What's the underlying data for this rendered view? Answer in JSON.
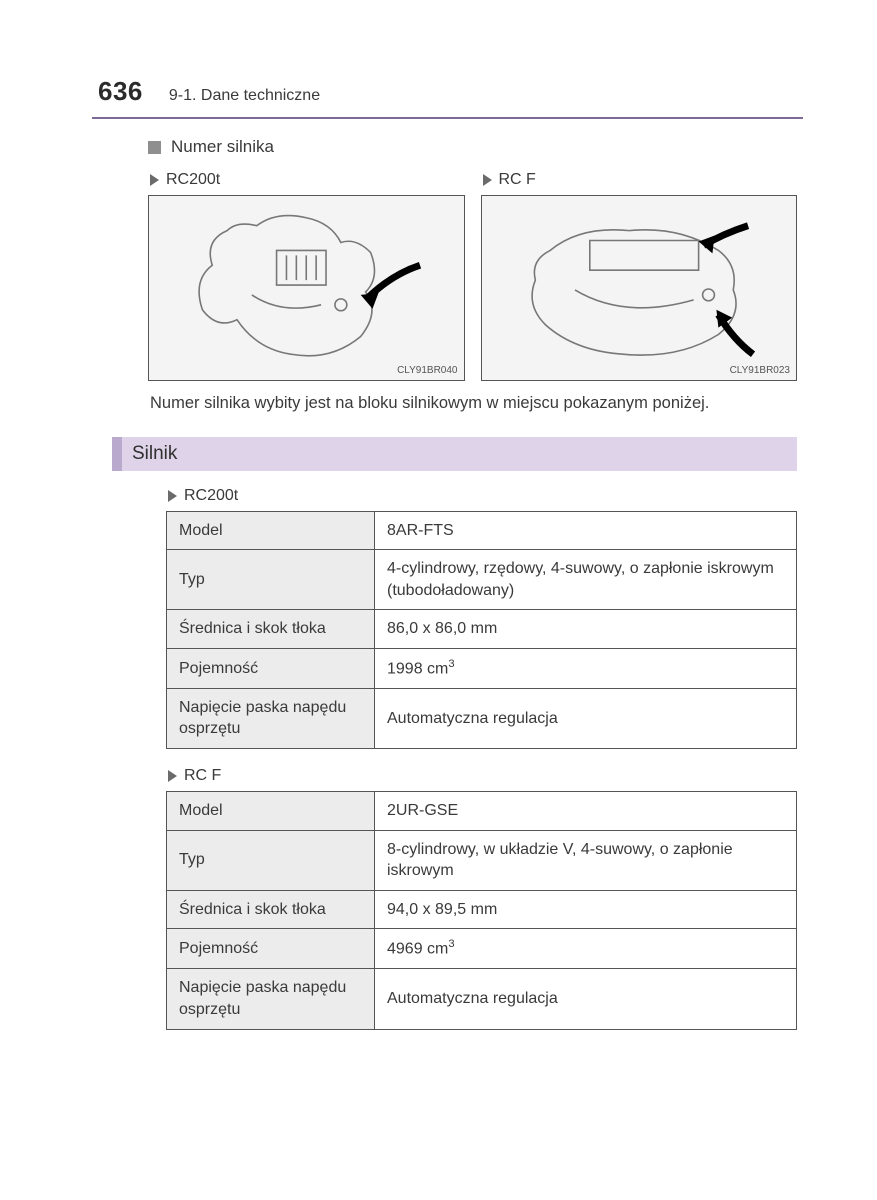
{
  "page_number": "636",
  "chapter": "9-1. Dane techniczne",
  "colors": {
    "divider": "#7d6a95",
    "section_accent": "#b9a9cc",
    "section_bg": "#ded3e8",
    "table_header_bg": "#ececec",
    "border": "#555555",
    "text": "#3a3a3a",
    "bullet": "#8f8f8f",
    "figure_bg": "#f4f4f4"
  },
  "engine_number": {
    "heading": "Numer silnika",
    "variants": [
      {
        "label": "RC200t",
        "img_code": "CLY91BR040"
      },
      {
        "label": "RC F",
        "img_code": "CLY91BR023"
      }
    ],
    "caption": "Numer silnika wybity jest na bloku silnikowym w miejscu pokazanym poniżej."
  },
  "engine_section": {
    "title": "Silnik",
    "tables": [
      {
        "label": "RC200t",
        "rows": [
          {
            "k": "Model",
            "v": "8AR-FTS"
          },
          {
            "k": "Typ",
            "v": "4-cylindrowy, rzędowy, 4-suwowy, o zapłonie iskrowym (tubodoładowany)"
          },
          {
            "k": "Średnica i skok tłoka",
            "v": "86,0 x 86,0 mm"
          },
          {
            "k": "Pojemność",
            "v_html": "1998 cm<sup>3</sup>"
          },
          {
            "k": "Napięcie paska napędu osprzętu",
            "v": "Automatyczna regulacja"
          }
        ]
      },
      {
        "label": "RC F",
        "rows": [
          {
            "k": "Model",
            "v": "2UR-GSE"
          },
          {
            "k": "Typ",
            "v": "8-cylindrowy, w układzie V, 4-suwowy, o zapłonie iskrowym"
          },
          {
            "k": "Średnica i skok tłoka",
            "v": "94,0 x 89,5 mm"
          },
          {
            "k": "Pojemność",
            "v_html": "4969 cm<sup>3</sup>"
          },
          {
            "k": "Napięcie paska napędu osprzętu",
            "v": "Automatyczna regulacja"
          }
        ]
      }
    ]
  }
}
